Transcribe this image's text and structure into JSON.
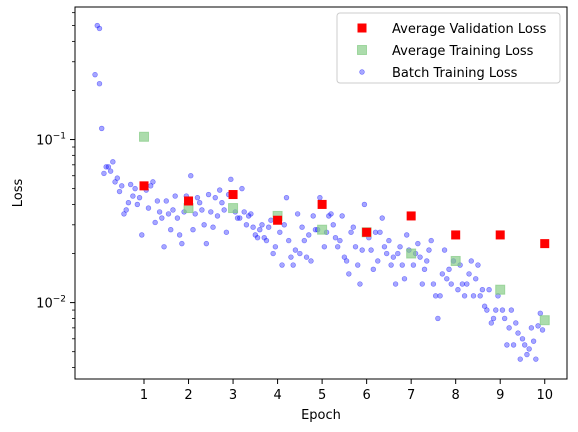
{
  "chart_data": {
    "type": "scatter",
    "title": "",
    "xlabel": "Epoch",
    "ylabel": "Loss",
    "yscale": "log",
    "xlim": [
      -0.55,
      10.5
    ],
    "ylim": [
      0.0034,
      0.65
    ],
    "xticks": [
      1,
      2,
      3,
      4,
      5,
      6,
      7,
      8,
      9,
      10
    ],
    "xtick_labels": [
      "1",
      "2",
      "3",
      "4",
      "5",
      "6",
      "7",
      "8",
      "9",
      "10"
    ],
    "yticks": [
      0.01,
      0.1
    ],
    "ytick_labels": [
      "10^-2",
      "10^-1"
    ],
    "grid": false,
    "legend_position": "top-right",
    "series": [
      {
        "name": "Average Validation Loss",
        "marker": "square",
        "color": "#ff0000",
        "x": [
          1,
          2,
          3,
          4,
          5,
          6,
          7,
          8,
          9,
          10
        ],
        "y": [
          0.052,
          0.042,
          0.046,
          0.032,
          0.04,
          0.027,
          0.034,
          0.026,
          0.026,
          0.023
        ]
      },
      {
        "name": "Average Training Loss",
        "marker": "square",
        "color": "#7fc97f",
        "x": [
          1,
          2,
          3,
          4,
          5,
          6,
          7,
          8,
          9,
          10
        ],
        "y": [
          0.104,
          0.038,
          0.038,
          0.034,
          0.028,
          0.027,
          0.02,
          0.018,
          0.012,
          0.0078
        ]
      },
      {
        "name": "Batch Training Loss",
        "marker": "circle",
        "color": "#0000ff",
        "x": [
          -0.05,
          0.0,
          -0.1,
          0.0,
          0.05,
          0.1,
          0.15,
          0.2,
          0.25,
          0.3,
          0.35,
          0.4,
          0.45,
          0.5,
          0.55,
          0.6,
          0.65,
          0.7,
          0.75,
          0.8,
          0.85,
          0.9,
          0.95,
          1.05,
          1.1,
          1.15,
          1.2,
          1.25,
          1.3,
          1.35,
          1.4,
          1.45,
          1.5,
          1.55,
          1.6,
          1.65,
          1.7,
          1.75,
          1.8,
          1.85,
          1.9,
          1.95,
          2.05,
          2.1,
          2.15,
          2.2,
          2.25,
          2.3,
          2.35,
          2.4,
          2.45,
          2.5,
          2.55,
          2.6,
          2.65,
          2.7,
          2.75,
          2.8,
          2.85,
          2.9,
          2.95,
          3.05,
          3.1,
          3.15,
          3.2,
          3.25,
          3.3,
          3.35,
          3.4,
          3.45,
          3.5,
          3.55,
          3.6,
          3.65,
          3.7,
          3.75,
          3.8,
          3.85,
          3.9,
          3.95,
          4.05,
          4.1,
          4.15,
          4.2,
          4.25,
          4.3,
          4.35,
          4.4,
          4.45,
          4.5,
          4.55,
          4.6,
          4.65,
          4.7,
          4.75,
          4.8,
          4.85,
          4.9,
          4.95,
          5.05,
          5.1,
          5.15,
          5.2,
          5.25,
          5.3,
          5.35,
          5.4,
          5.45,
          5.5,
          5.55,
          5.6,
          5.65,
          5.7,
          5.75,
          5.8,
          5.85,
          5.9,
          5.95,
          6.05,
          6.1,
          6.15,
          6.2,
          6.25,
          6.3,
          6.35,
          6.4,
          6.45,
          6.5,
          6.55,
          6.6,
          6.65,
          6.7,
          6.75,
          6.8,
          6.85,
          6.9,
          6.95,
          7.05,
          7.1,
          7.15,
          7.2,
          7.25,
          7.3,
          7.35,
          7.4,
          7.45,
          7.5,
          7.55,
          7.6,
          7.65,
          7.7,
          7.75,
          7.8,
          7.85,
          7.9,
          7.95,
          8.05,
          8.1,
          8.15,
          8.2,
          8.25,
          8.3,
          8.35,
          8.4,
          8.45,
          8.5,
          8.55,
          8.6,
          8.65,
          8.7,
          8.75,
          8.8,
          8.85,
          8.9,
          8.95,
          9.05,
          9.1,
          9.15,
          9.2,
          9.25,
          9.3,
          9.35,
          9.4,
          9.45,
          9.5,
          9.55,
          9.6,
          9.65,
          9.7,
          9.75,
          9.8,
          9.85,
          9.9,
          9.95
        ],
        "y": [
          0.5,
          0.48,
          0.25,
          0.22,
          0.117,
          0.062,
          0.068,
          0.068,
          0.064,
          0.073,
          0.055,
          0.058,
          0.048,
          0.052,
          0.035,
          0.037,
          0.041,
          0.053,
          0.045,
          0.05,
          0.04,
          0.044,
          0.026,
          0.049,
          0.038,
          0.052,
          0.055,
          0.031,
          0.042,
          0.036,
          0.033,
          0.022,
          0.042,
          0.035,
          0.028,
          0.037,
          0.045,
          0.033,
          0.026,
          0.023,
          0.036,
          0.045,
          0.06,
          0.028,
          0.035,
          0.044,
          0.041,
          0.037,
          0.03,
          0.023,
          0.046,
          0.036,
          0.029,
          0.044,
          0.034,
          0.049,
          0.041,
          0.037,
          0.027,
          0.046,
          0.057,
          0.036,
          0.033,
          0.033,
          0.05,
          0.036,
          0.03,
          0.034,
          0.035,
          0.029,
          0.026,
          0.025,
          0.028,
          0.03,
          0.025,
          0.024,
          0.029,
          0.032,
          0.02,
          0.022,
          0.027,
          0.017,
          0.03,
          0.044,
          0.024,
          0.019,
          0.017,
          0.021,
          0.035,
          0.02,
          0.029,
          0.024,
          0.019,
          0.026,
          0.018,
          0.034,
          0.028,
          0.028,
          0.044,
          0.022,
          0.027,
          0.034,
          0.035,
          0.03,
          0.025,
          0.022,
          0.024,
          0.034,
          0.019,
          0.018,
          0.015,
          0.027,
          0.029,
          0.022,
          0.017,
          0.013,
          0.021,
          0.04,
          0.025,
          0.021,
          0.016,
          0.027,
          0.018,
          0.027,
          0.033,
          0.022,
          0.02,
          0.024,
          0.017,
          0.019,
          0.013,
          0.02,
          0.022,
          0.017,
          0.014,
          0.026,
          0.021,
          0.017,
          0.02,
          0.023,
          0.019,
          0.013,
          0.016,
          0.018,
          0.021,
          0.024,
          0.013,
          0.011,
          0.008,
          0.011,
          0.015,
          0.021,
          0.014,
          0.016,
          0.013,
          0.018,
          0.012,
          0.017,
          0.013,
          0.011,
          0.013,
          0.015,
          0.018,
          0.011,
          0.014,
          0.017,
          0.011,
          0.012,
          0.0095,
          0.009,
          0.012,
          0.0075,
          0.008,
          0.009,
          0.011,
          0.009,
          0.008,
          0.0055,
          0.007,
          0.009,
          0.0055,
          0.0075,
          0.0065,
          0.0045,
          0.006,
          0.0055,
          0.0048,
          0.0052,
          0.007,
          0.0058,
          0.0045,
          0.0072,
          0.0086,
          0.0068
        ]
      }
    ]
  }
}
